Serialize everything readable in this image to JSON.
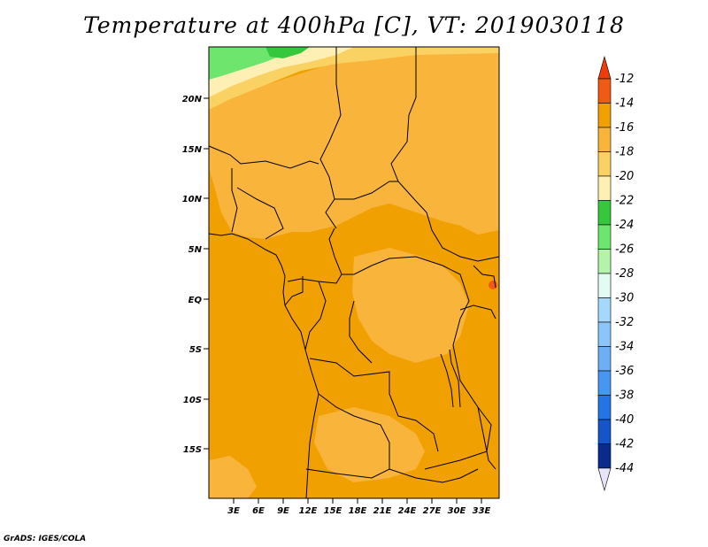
{
  "title": "Temperature at 400hPa [C], VT: 2019030118",
  "credit": "GrADS: IGES/COLA",
  "map": {
    "lon_ticks": [
      "3E",
      "6E",
      "9E",
      "12E",
      "15E",
      "18E",
      "21E",
      "24E",
      "27E",
      "30E",
      "33E"
    ],
    "lat_ticks": [
      "20N",
      "15N",
      "10N",
      "5N",
      "EQ",
      "5S",
      "10S",
      "15S"
    ]
  },
  "colorbar": {
    "labels": [
      "-12",
      "-14",
      "-16",
      "-18",
      "-20",
      "-22",
      "-24",
      "-26",
      "-28",
      "-30",
      "-32",
      "-34",
      "-36",
      "-38",
      "-40",
      "-42",
      "-44"
    ],
    "colors": [
      "#f05a14",
      "#f0a000",
      "#f9b43c",
      "#fad264",
      "#fef0b4",
      "#36c83c",
      "#6ee66e",
      "#b4f4aa",
      "#e2fbf3",
      "#a6d8fb",
      "#8cc6f8",
      "#6eaef5",
      "#4696f2",
      "#2474e6",
      "#1456c8",
      "#0a2a8c"
    ],
    "top_arrow_color": "#f03c0a",
    "bottom_arrow_color": "#e6e6f6"
  },
  "legend_colors": {
    "lon_lat_text": "#000000",
    "border_color": "#000000"
  }
}
